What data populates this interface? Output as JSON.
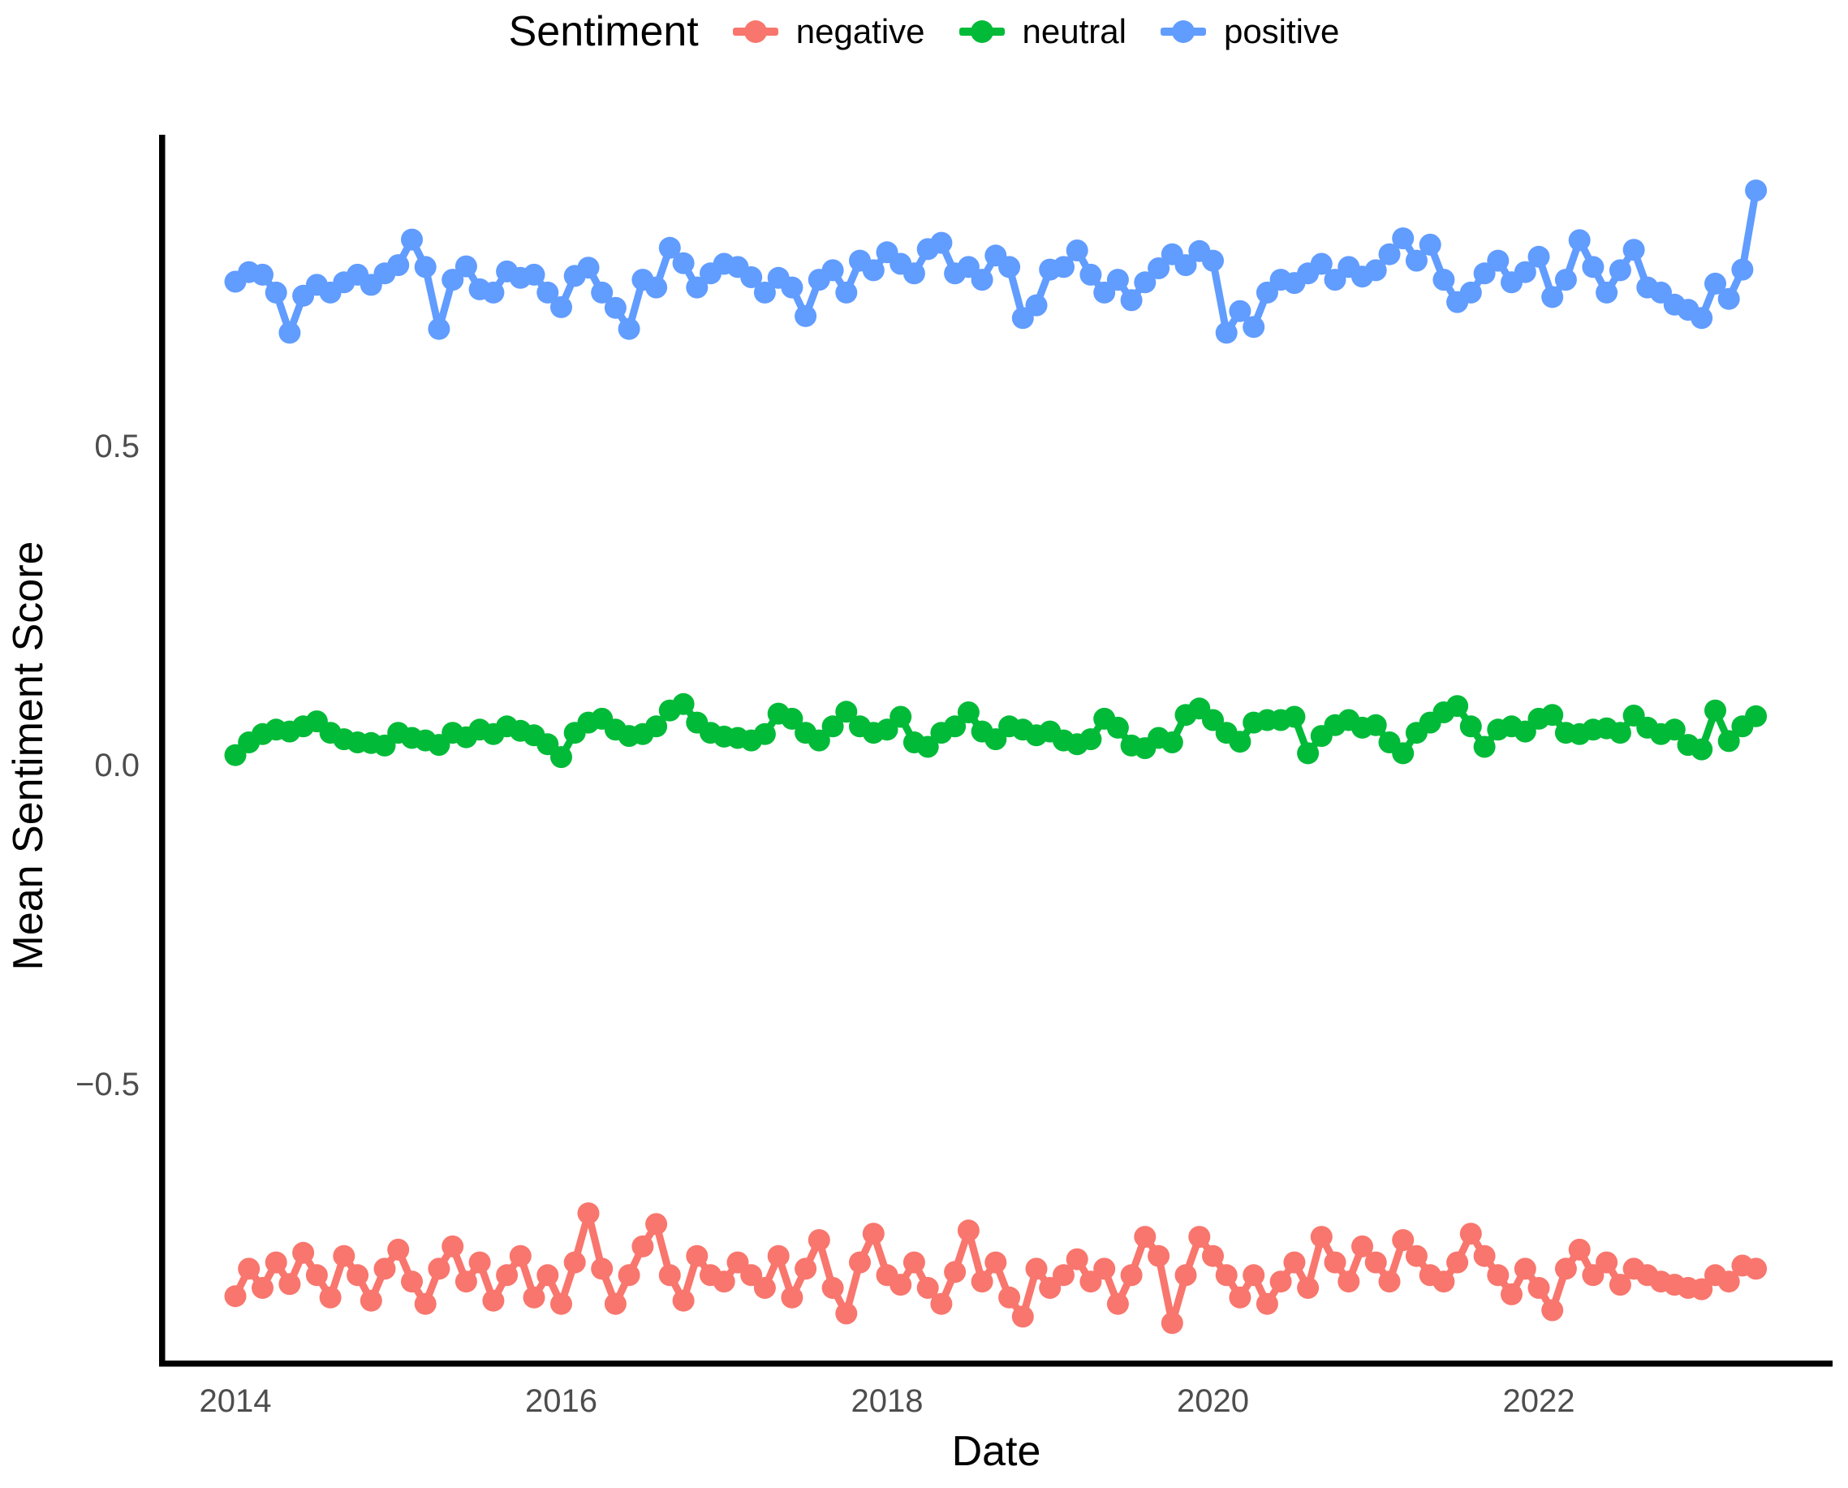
{
  "chart": {
    "background": "#FFFFFF",
    "axis_line_color": "#000000",
    "tick_label_color": "#4D4D4D",
    "point_radius": 13.5,
    "line_width": 9
  },
  "chart_data": {
    "type": "line",
    "title": "",
    "legend_title": "Sentiment",
    "legend_position": "top",
    "xlabel": "Date",
    "ylabel": "Mean Sentiment Score",
    "grid": false,
    "x_unit": "month",
    "x_start": "2014-01",
    "x_end": "2023-05",
    "x_tick_labels": [
      "2014",
      "2016",
      "2018",
      "2020",
      "2022"
    ],
    "x_tick_month_index": [
      0,
      24,
      48,
      72,
      96
    ],
    "y_ticks": [
      {
        "label": "0.5",
        "value": 0.5
      },
      {
        "label": "0.0",
        "value": 0.0
      },
      {
        "label": "−0.5",
        "value": -0.5
      }
    ],
    "ylim": [
      -0.93,
      0.99
    ],
    "series": [
      {
        "name": "negative",
        "color": "#F8766D",
        "values": [
          -0.833,
          -0.79,
          -0.82,
          -0.78,
          -0.814,
          -0.765,
          -0.8,
          -0.835,
          -0.77,
          -0.8,
          -0.84,
          -0.79,
          -0.76,
          -0.81,
          -0.845,
          -0.79,
          -0.755,
          -0.81,
          -0.78,
          -0.84,
          -0.8,
          -0.77,
          -0.835,
          -0.8,
          -0.845,
          -0.78,
          -0.703,
          -0.79,
          -0.845,
          -0.8,
          -0.755,
          -0.72,
          -0.8,
          -0.84,
          -0.77,
          -0.8,
          -0.81,
          -0.78,
          -0.8,
          -0.82,
          -0.77,
          -0.835,
          -0.79,
          -0.745,
          -0.82,
          -0.86,
          -0.78,
          -0.735,
          -0.8,
          -0.815,
          -0.78,
          -0.82,
          -0.845,
          -0.795,
          -0.73,
          -0.81,
          -0.78,
          -0.835,
          -0.865,
          -0.79,
          -0.82,
          -0.8,
          -0.775,
          -0.81,
          -0.79,
          -0.845,
          -0.8,
          -0.74,
          -0.77,
          -0.875,
          -0.8,
          -0.74,
          -0.77,
          -0.8,
          -0.835,
          -0.8,
          -0.845,
          -0.81,
          -0.78,
          -0.82,
          -0.74,
          -0.78,
          -0.81,
          -0.755,
          -0.78,
          -0.81,
          -0.745,
          -0.77,
          -0.8,
          -0.81,
          -0.78,
          -0.735,
          -0.77,
          -0.8,
          -0.83,
          -0.79,
          -0.82,
          -0.855,
          -0.79,
          -0.76,
          -0.8,
          -0.78,
          -0.815,
          -0.79,
          -0.8,
          -0.81,
          -0.815,
          -0.82,
          -0.822,
          -0.8,
          -0.81,
          -0.785,
          -0.79
        ]
      },
      {
        "name": "neutral",
        "color": "#00BA38",
        "values": [
          0.015,
          0.035,
          0.048,
          0.055,
          0.052,
          0.06,
          0.068,
          0.05,
          0.04,
          0.035,
          0.034,
          0.03,
          0.05,
          0.042,
          0.038,
          0.031,
          0.05,
          0.043,
          0.055,
          0.048,
          0.06,
          0.053,
          0.046,
          0.032,
          0.012,
          0.05,
          0.066,
          0.072,
          0.055,
          0.045,
          0.048,
          0.06,
          0.085,
          0.095,
          0.066,
          0.05,
          0.044,
          0.042,
          0.038,
          0.048,
          0.08,
          0.072,
          0.05,
          0.038,
          0.06,
          0.083,
          0.06,
          0.05,
          0.055,
          0.075,
          0.035,
          0.028,
          0.05,
          0.06,
          0.082,
          0.052,
          0.04,
          0.06,
          0.055,
          0.046,
          0.052,
          0.038,
          0.032,
          0.04,
          0.072,
          0.058,
          0.03,
          0.026,
          0.042,
          0.035,
          0.078,
          0.088,
          0.07,
          0.05,
          0.036,
          0.066,
          0.07,
          0.07,
          0.075,
          0.018,
          0.045,
          0.062,
          0.07,
          0.058,
          0.062,
          0.035,
          0.018,
          0.05,
          0.066,
          0.082,
          0.092,
          0.06,
          0.028,
          0.055,
          0.06,
          0.052,
          0.072,
          0.078,
          0.05,
          0.048,
          0.055,
          0.057,
          0.05,
          0.077,
          0.058,
          0.048,
          0.055,
          0.031,
          0.024,
          0.085,
          0.037,
          0.06,
          0.076
        ]
      },
      {
        "name": "positive",
        "color": "#619CFF",
        "values": [
          0.757,
          0.772,
          0.768,
          0.74,
          0.677,
          0.735,
          0.752,
          0.74,
          0.756,
          0.768,
          0.752,
          0.77,
          0.783,
          0.823,
          0.78,
          0.683,
          0.76,
          0.781,
          0.745,
          0.74,
          0.773,
          0.763,
          0.768,
          0.74,
          0.717,
          0.766,
          0.779,
          0.74,
          0.716,
          0.683,
          0.76,
          0.748,
          0.81,
          0.786,
          0.748,
          0.77,
          0.785,
          0.78,
          0.764,
          0.74,
          0.763,
          0.748,
          0.703,
          0.76,
          0.775,
          0.74,
          0.79,
          0.775,
          0.803,
          0.785,
          0.77,
          0.808,
          0.818,
          0.77,
          0.78,
          0.76,
          0.798,
          0.78,
          0.7,
          0.72,
          0.776,
          0.78,
          0.806,
          0.768,
          0.74,
          0.76,
          0.728,
          0.756,
          0.778,
          0.8,
          0.783,
          0.805,
          0.79,
          0.677,
          0.711,
          0.686,
          0.74,
          0.76,
          0.755,
          0.77,
          0.785,
          0.76,
          0.78,
          0.765,
          0.775,
          0.8,
          0.825,
          0.79,
          0.815,
          0.76,
          0.725,
          0.74,
          0.77,
          0.79,
          0.756,
          0.772,
          0.796,
          0.733,
          0.76,
          0.822,
          0.78,
          0.74,
          0.775,
          0.807,
          0.748,
          0.74,
          0.721,
          0.713,
          0.7,
          0.754,
          0.73,
          0.776,
          0.9
        ]
      }
    ]
  }
}
